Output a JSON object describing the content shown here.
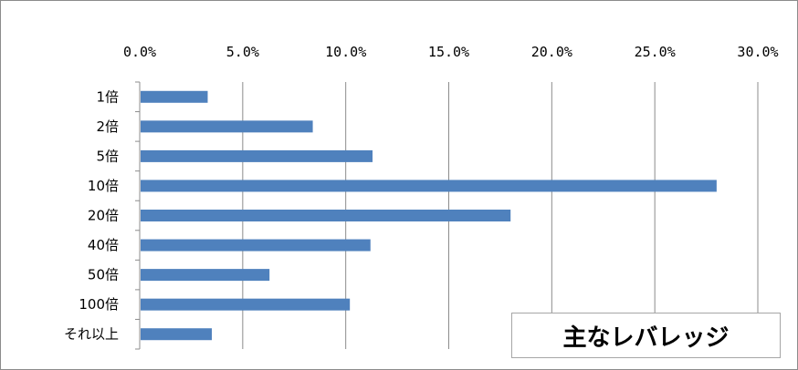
{
  "chart_data": {
    "type": "bar",
    "orientation": "horizontal",
    "title": "主なレバレッジ",
    "categories": [
      "1倍",
      "2倍",
      "5倍",
      "10倍",
      "20倍",
      "40倍",
      "50倍",
      "100倍",
      "それ以上"
    ],
    "values": [
      3.3,
      8.4,
      11.3,
      28.0,
      18.0,
      11.2,
      6.3,
      10.2,
      3.5
    ],
    "x_ticks": [
      "0.0%",
      "5.0%",
      "10.0%",
      "15.0%",
      "20.0%",
      "25.0%",
      "30.0%"
    ],
    "xlim": [
      0,
      30
    ],
    "bar_color": "#4f81bd",
    "grid": "vertical",
    "x_axis_position": "top"
  }
}
